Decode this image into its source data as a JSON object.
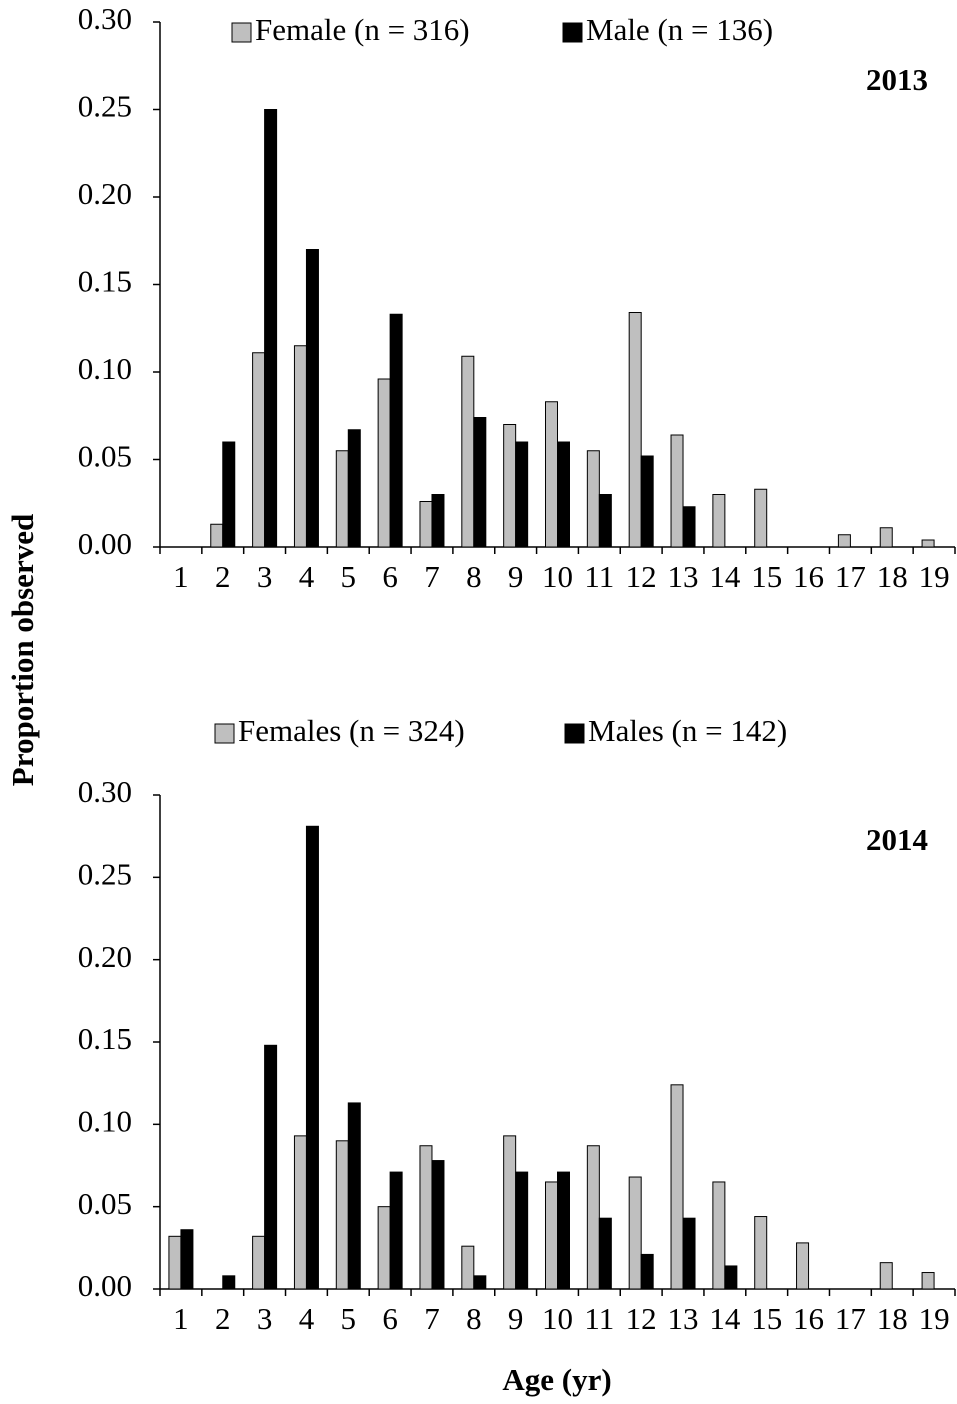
{
  "chart_data": [
    {
      "type": "bar",
      "annotation": "2013",
      "ylabel": "Proportion observed",
      "categories": [
        "1",
        "2",
        "3",
        "4",
        "5",
        "6",
        "7",
        "8",
        "9",
        "10",
        "11",
        "12",
        "13",
        "14",
        "15",
        "16",
        "17",
        "18",
        "19"
      ],
      "series": [
        {
          "name": "Female (n = 316)",
          "color": "#bfbfbf",
          "values": [
            0,
            0.013,
            0.111,
            0.115,
            0.055,
            0.096,
            0.026,
            0.109,
            0.07,
            0.083,
            0.055,
            0.134,
            0.064,
            0.03,
            0.033,
            0,
            0.007,
            0.011,
            0.004
          ]
        },
        {
          "name": "Male (n = 136)",
          "color": "#000000",
          "values": [
            0,
            0.06,
            0.25,
            0.17,
            0.067,
            0.133,
            0.03,
            0.074,
            0.06,
            0.06,
            0.03,
            0.052,
            0.023,
            0,
            0,
            0,
            0,
            0,
            0
          ]
        }
      ],
      "ylim": [
        0,
        0.3
      ],
      "yticks": [
        {
          "value": 0,
          "label": "0.00"
        },
        {
          "value": 0.05,
          "label": "0.05"
        },
        {
          "value": 0.1,
          "label": "0.10"
        },
        {
          "value": 0.15,
          "label": "0.15"
        },
        {
          "value": 0.2,
          "label": "0.20"
        },
        {
          "value": 0.25,
          "label": "0.25"
        },
        {
          "value": 0.3,
          "label": "0.30"
        }
      ],
      "grid": false,
      "legend": "top"
    },
    {
      "type": "bar",
      "annotation": "2014",
      "xlabel": "Age (yr)",
      "categories": [
        "1",
        "2",
        "3",
        "4",
        "5",
        "6",
        "7",
        "8",
        "9",
        "10",
        "11",
        "12",
        "13",
        "14",
        "15",
        "16",
        "17",
        "18",
        "19"
      ],
      "series": [
        {
          "name": "Females (n = 324)",
          "color": "#bfbfbf",
          "values": [
            0.032,
            0,
            0.032,
            0.093,
            0.09,
            0.05,
            0.087,
            0.026,
            0.093,
            0.065,
            0.087,
            0.068,
            0.124,
            0.065,
            0.044,
            0.028,
            0,
            0.016,
            0.01
          ]
        },
        {
          "name": "Males (n = 142)",
          "color": "#000000",
          "values": [
            0.036,
            0.008,
            0.148,
            0.281,
            0.113,
            0.071,
            0.078,
            0.008,
            0.071,
            0.071,
            0.043,
            0.021,
            0.043,
            0.014,
            0,
            0,
            0,
            0,
            0
          ]
        }
      ],
      "ylim": [
        0,
        0.3
      ],
      "yticks": [
        {
          "value": 0,
          "label": "0.00"
        },
        {
          "value": 0.05,
          "label": "0.05"
        },
        {
          "value": 0.1,
          "label": "0.10"
        },
        {
          "value": 0.15,
          "label": "0.15"
        },
        {
          "value": 0.2,
          "label": "0.20"
        },
        {
          "value": 0.25,
          "label": "0.25"
        },
        {
          "value": 0.3,
          "label": "0.30"
        }
      ],
      "grid": false,
      "legend": "top"
    }
  ]
}
